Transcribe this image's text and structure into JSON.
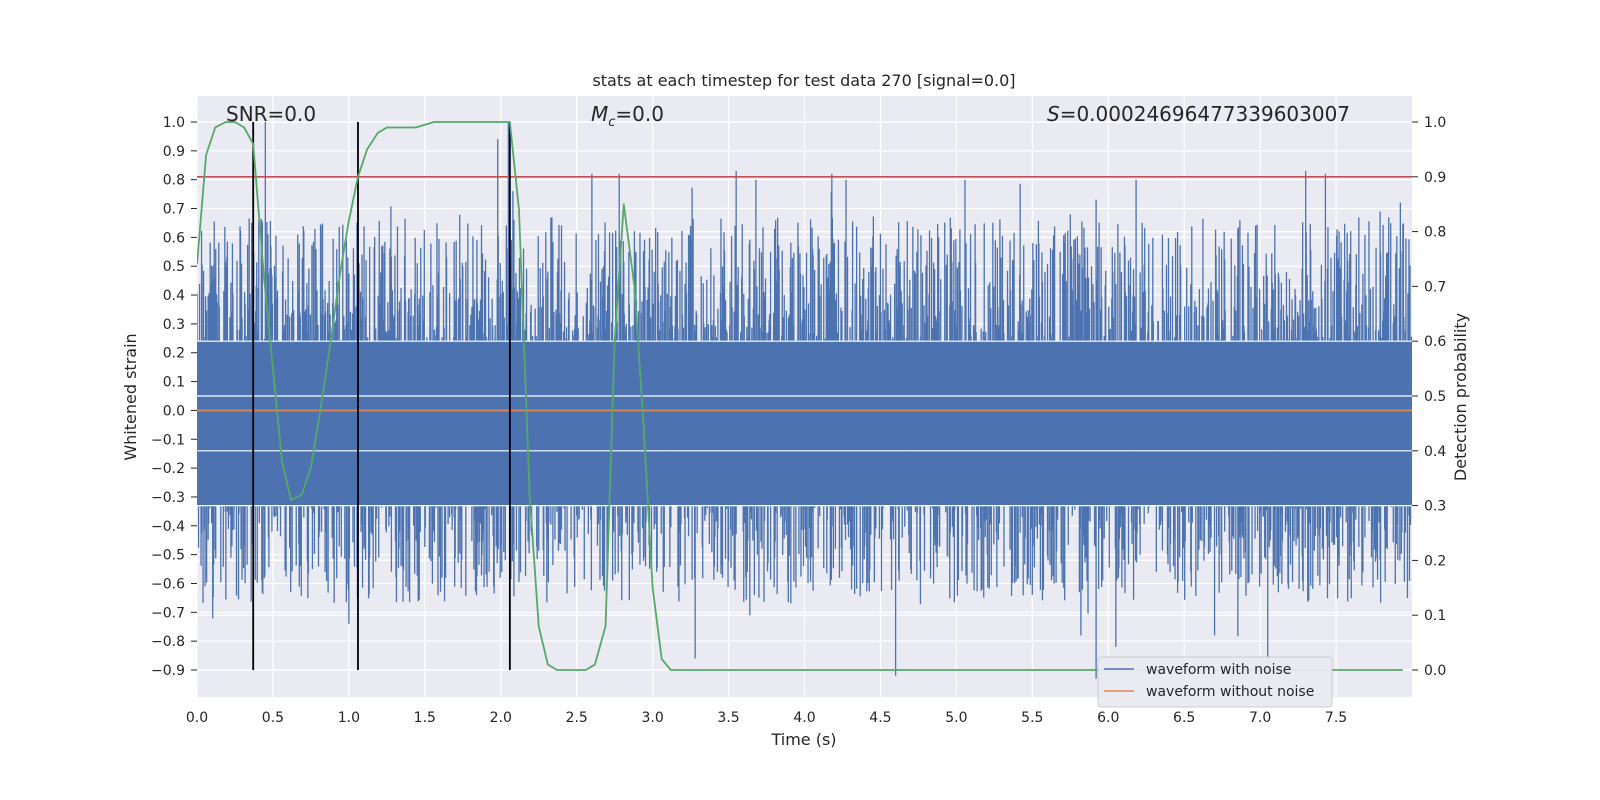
{
  "chart_data": {
    "type": "line",
    "title": "stats at each timestep for test data 270 [signal=0.0]",
    "xlabel": "Time (s)",
    "ylabel_left": "Whitened strain",
    "ylabel_right": "Detection probability",
    "xlim": [
      0.0,
      8.0
    ],
    "ylim_left": [
      -1.08,
      1.08
    ],
    "ylim_right": [
      -0.05,
      1.05
    ],
    "xticks": [
      "0.0",
      "0.5",
      "1.0",
      "1.5",
      "2.0",
      "2.5",
      "3.0",
      "3.5",
      "4.0",
      "4.5",
      "5.0",
      "5.5",
      "6.0",
      "6.5",
      "7.0",
      "7.5"
    ],
    "xtick_values": [
      0,
      0.5,
      1,
      1.5,
      2,
      2.5,
      3,
      3.5,
      4,
      4.5,
      5,
      5.5,
      6,
      6.5,
      7,
      7.5
    ],
    "yticks_left": [
      "1.0",
      "0.9",
      "0.8",
      "0.7",
      "0.6",
      "0.5",
      "0.4",
      "0.3",
      "0.2",
      "0.1",
      "0.0",
      "−0.1",
      "−0.2",
      "−0.3",
      "−0.4",
      "−0.5",
      "−0.6",
      "−0.7",
      "−0.8",
      "−0.9"
    ],
    "ytick_values_left": [
      1.0,
      0.9,
      0.8,
      0.7,
      0.6,
      0.5,
      0.4,
      0.3,
      0.2,
      0.1,
      0.0,
      -0.1,
      -0.2,
      -0.3,
      -0.4,
      -0.5,
      -0.6,
      -0.7,
      -0.8,
      -0.9
    ],
    "yticks_right": [
      "1.0",
      "0.9",
      "0.8",
      "0.7",
      "0.6",
      "0.5",
      "0.4",
      "0.3",
      "0.2",
      "0.1",
      "0.0"
    ],
    "ytick_values_right": [
      1.0,
      0.9,
      0.8,
      0.7,
      0.6,
      0.5,
      0.4,
      0.3,
      0.2,
      0.1,
      0.0
    ],
    "grid": true,
    "legend_position": "bottom-right",
    "annotations": {
      "snr": "SNR=0.0",
      "mc_symbol": "M",
      "mc_sub": "c",
      "mc_value": "=0.0",
      "s_symbol": "S",
      "s_value": "=0.0002469647733960300​7"
    },
    "series": [
      {
        "name": "waveform with noise",
        "color": "#4c72b0",
        "axis": "left",
        "noise_sigma": 0.18,
        "peak_max": [
          [
            0.45,
            1.0
          ],
          [
            1.98,
            0.94
          ],
          [
            2.05,
            1.0
          ],
          [
            2.6,
            0.82
          ],
          [
            2.78,
            0.82
          ],
          [
            3.55,
            0.83
          ],
          [
            4.18,
            0.82
          ],
          [
            7.3,
            0.83
          ],
          [
            7.43,
            0.82
          ],
          [
            0.36,
            0.65
          ],
          [
            5.75,
            0.68
          ]
        ],
        "peak_min": [
          [
            0.37,
            -0.69
          ],
          [
            0.43,
            -0.63
          ],
          [
            1.0,
            -0.74
          ],
          [
            3.28,
            -0.86
          ],
          [
            4.6,
            -0.92
          ],
          [
            5.92,
            -0.93
          ],
          [
            6.05,
            -0.82
          ],
          [
            7.05,
            -0.89
          ],
          [
            6.7,
            -0.78
          ],
          [
            5.82,
            -0.78
          ]
        ]
      },
      {
        "name": "waveform without noise",
        "color": "#dd8452",
        "axis": "left",
        "x": [
          0.0,
          8.0
        ],
        "y": [
          0.0,
          0.0
        ]
      },
      {
        "name": "",
        "color": "#55a868",
        "axis": "right",
        "x": [
          0.0,
          0.06,
          0.12,
          0.19,
          0.25,
          0.31,
          0.37,
          0.44,
          0.5,
          0.56,
          0.62,
          0.69,
          0.75,
          0.81,
          0.88,
          0.94,
          1.0,
          1.06,
          1.12,
          1.19,
          1.25,
          1.31,
          1.37,
          1.44,
          1.5,
          1.56,
          1.62,
          1.69,
          1.75,
          1.81,
          1.88,
          1.94,
          2.0,
          2.06,
          2.12,
          2.19,
          2.25,
          2.31,
          2.37,
          2.44,
          2.5,
          2.56,
          2.62,
          2.69,
          2.75,
          2.81,
          2.88,
          2.94,
          3.0,
          3.06,
          3.12,
          3.19,
          3.25,
          3.5,
          4.0,
          5.0,
          6.0,
          7.0,
          7.94
        ],
        "y": [
          0.74,
          0.94,
          0.99,
          1.0,
          1.0,
          0.99,
          0.96,
          0.72,
          0.55,
          0.38,
          0.31,
          0.32,
          0.37,
          0.47,
          0.6,
          0.72,
          0.82,
          0.9,
          0.95,
          0.98,
          0.99,
          0.99,
          0.99,
          0.99,
          0.995,
          1.0,
          1.0,
          1.0,
          1.0,
          1.0,
          1.0,
          1.0,
          1.0,
          1.0,
          0.84,
          0.32,
          0.08,
          0.01,
          0.0,
          0.0,
          0.0,
          0.0,
          0.01,
          0.08,
          0.6,
          0.85,
          0.7,
          0.45,
          0.15,
          0.02,
          0.0,
          0.0,
          0.0,
          0.0,
          0.0,
          0.0,
          0.0,
          0.0,
          0.0
        ]
      }
    ],
    "hlines": [
      {
        "axis": "right",
        "y": 0.9,
        "color": "#c44e52"
      }
    ],
    "vlines": [
      {
        "x": 0.37,
        "ymin": -0.9,
        "ymax": 1.0,
        "color": "#000000"
      },
      {
        "x": 1.06,
        "ymin": -0.9,
        "ymax": 1.0,
        "color": "#000000"
      },
      {
        "x": 2.06,
        "ymin": -0.9,
        "ymax": 1.0,
        "color": "#000000"
      }
    ]
  }
}
